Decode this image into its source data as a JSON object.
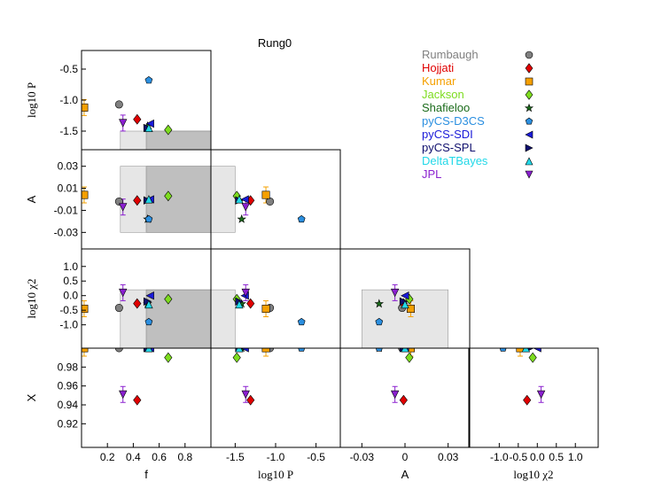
{
  "chart_data": {
    "type": "scatter",
    "title": "Rung0",
    "legend": {
      "placement": "top-right",
      "entries": [
        {
          "name": "Rumbaugh",
          "color": "#808080",
          "marker": "circle"
        },
        {
          "name": "Hojjati",
          "color": "#e00000",
          "marker": "diamond"
        },
        {
          "name": "Kumar",
          "color": "#f5a000",
          "marker": "square"
        },
        {
          "name": "Jackson",
          "color": "#7ddc1f",
          "marker": "diamond"
        },
        {
          "name": "Shafieloo",
          "color": "#1a6b1a",
          "marker": "star"
        },
        {
          "name": "pyCS-D3CS",
          "color": "#2b8fe0",
          "marker": "pentagon"
        },
        {
          "name": "pyCS-SDI",
          "color": "#1a1ad8",
          "marker": "triangle-left"
        },
        {
          "name": "pyCS-SPL",
          "color": "#0f0f6e",
          "marker": "triangle-right"
        },
        {
          "name": "DeltaTBayes",
          "color": "#22d8e8",
          "marker": "triangle-up"
        },
        {
          "name": "JPL",
          "color": "#8a1fcf",
          "marker": "triangle-down"
        }
      ]
    },
    "axes": {
      "f": {
        "label": "f",
        "range": [
          0.0,
          1.0
        ],
        "ticks": [
          "0.2",
          "0.4",
          "0.6",
          "0.8"
        ],
        "tick_values": [
          0.2,
          0.4,
          0.6,
          0.8
        ]
      },
      "logP": {
        "label": "log10 P",
        "range": [
          -1.8,
          -0.2
        ],
        "ticks": [
          "-1.5",
          "-1.0",
          "-0.5"
        ],
        "tick_values": [
          -1.5,
          -1.0,
          -0.5
        ]
      },
      "A": {
        "label": "A",
        "range": [
          -0.045,
          0.045
        ],
        "ticks": [
          "-0.03",
          "-0.01",
          "0.01",
          "0.03"
        ],
        "tick_values": [
          -0.03,
          -0.01,
          0.01,
          0.03
        ],
        "bottom_ticks": [
          "-0.03",
          "0",
          "0.03"
        ],
        "bottom_tick_values": [
          -0.03,
          0.0,
          0.03
        ]
      },
      "logchi2": {
        "label": "log10 χ2",
        "range": [
          -1.8,
          1.6
        ],
        "ticks": [
          "-1.0",
          "-0.5",
          "0.0",
          "0.5",
          "1.0"
        ],
        "tick_values": [
          -1.0,
          -0.5,
          0.0,
          0.5,
          1.0
        ],
        "bottom_ticks": [
          "-1.0",
          "-0.5",
          "0.0",
          "0.5",
          "1.0"
        ],
        "bottom_tick_values": [
          -1.0,
          -0.5,
          0.0,
          0.5,
          1.0
        ]
      },
      "X": {
        "label": "X",
        "range": [
          0.895,
          1.0
        ],
        "ticks": [
          "0.92",
          "0.94",
          "0.96",
          "0.98"
        ],
        "tick_values": [
          0.92,
          0.94,
          0.96,
          0.98
        ]
      }
    },
    "target_regions": {
      "f": {
        "light": [
          0.3,
          1.0
        ],
        "dark": [
          0.5,
          1.0
        ]
      },
      "logP": {
        "light": [
          -1.8,
          -1.5
        ]
      },
      "A": {
        "light": [
          -0.03,
          0.03
        ]
      },
      "logchi2": {
        "light": [
          -1.8,
          0.2
        ]
      }
    },
    "points": [
      {
        "name": "Rumbaugh",
        "f": 0.29,
        "logP": -1.07,
        "A": -0.002,
        "logchi2": -0.42,
        "X": 1.0
      },
      {
        "name": "Hojjati",
        "f": 0.43,
        "logP": -1.31,
        "A": -0.001,
        "logchi2": -0.27,
        "X": 0.945
      },
      {
        "name": "Kumar",
        "f": 0.02,
        "logP": -1.12,
        "A": 0.004,
        "logchi2": -0.45,
        "X": 1.0
      },
      {
        "name": "Jackson",
        "f": 0.67,
        "logP": -1.48,
        "A": 0.003,
        "logchi2": -0.12,
        "X": 0.99
      },
      {
        "name": "Shafieloo",
        "f": 0.51,
        "logP": -1.42,
        "A": -0.018,
        "logchi2": -0.28,
        "X": 1.0
      },
      {
        "name": "pyCS-D3CS",
        "f": 0.52,
        "logP": -0.68,
        "A": -0.018,
        "logchi2": -0.9,
        "X": 1.0
      },
      {
        "name": "pyCS-SDI",
        "f": 0.53,
        "logP": -1.38,
        "A": 0.0,
        "logchi2": 0.0,
        "X": 1.0
      },
      {
        "name": "pyCS-SPL",
        "f": 0.51,
        "logP": -1.45,
        "A": -0.001,
        "logchi2": -0.2,
        "X": 1.0
      },
      {
        "name": "DeltaTBayes",
        "f": 0.52,
        "logP": -1.45,
        "A": 0.0,
        "logchi2": -0.3,
        "X": 1.0
      },
      {
        "name": "JPL",
        "f": 0.32,
        "logP": -1.37,
        "A": -0.007,
        "logchi2": 0.1,
        "X": 0.951
      }
    ]
  }
}
